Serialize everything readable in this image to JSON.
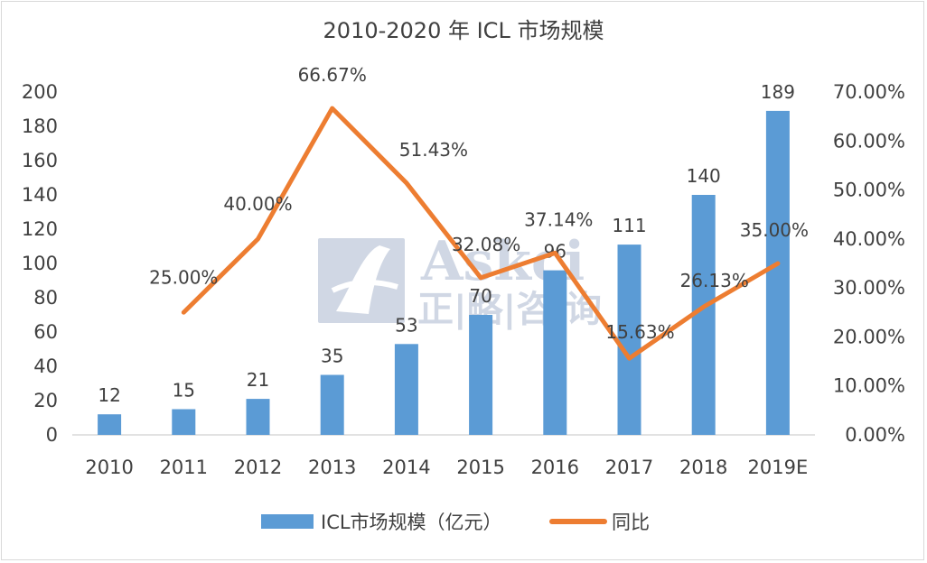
{
  "chart_data": {
    "type": "bar+line",
    "title": "2010-2020 年 ICL 市场规模",
    "categories": [
      "2010",
      "2011",
      "2012",
      "2013",
      "2014",
      "2015",
      "2016",
      "2017",
      "2018",
      "2019E"
    ],
    "series": [
      {
        "name": "ICL市场规模（亿元）",
        "type": "bar",
        "axis": "left",
        "color": "#5b9bd5",
        "values": [
          12,
          15,
          21,
          35,
          53,
          70,
          96,
          111,
          140,
          189
        ],
        "labels": [
          "12",
          "15",
          "21",
          "35",
          "53",
          "70",
          "96",
          "111",
          "140",
          "189"
        ]
      },
      {
        "name": "同比",
        "type": "line",
        "axis": "right",
        "color": "#ed7d31",
        "values": [
          null,
          25.0,
          40.0,
          66.67,
          51.43,
          32.08,
          37.14,
          15.63,
          26.13,
          35.0
        ],
        "labels": [
          null,
          "25.00%",
          "40.00%",
          "66.67%",
          "51.43%",
          "32.08%",
          "37.14%",
          "15.63%",
          "26.13%",
          "35.00%"
        ]
      }
    ],
    "y_left": {
      "min": 0,
      "max": 200,
      "ticks": [
        "0",
        "20",
        "40",
        "60",
        "80",
        "100",
        "120",
        "140",
        "160",
        "180",
        "200"
      ]
    },
    "y_right": {
      "min": 0,
      "max": 70,
      "ticks": [
        "0.00%",
        "10.00%",
        "20.00%",
        "30.00%",
        "40.00%",
        "50.00%",
        "60.00%",
        "70.00%"
      ]
    },
    "legend": "bottom",
    "grid": false
  },
  "watermark": {
    "brand": "Askci",
    "cn": "正|略|咨|询"
  },
  "colors": {
    "bar": "#5b9bd5",
    "line": "#ed7d31",
    "text": "#404040",
    "axis": "#d9d9d9"
  }
}
